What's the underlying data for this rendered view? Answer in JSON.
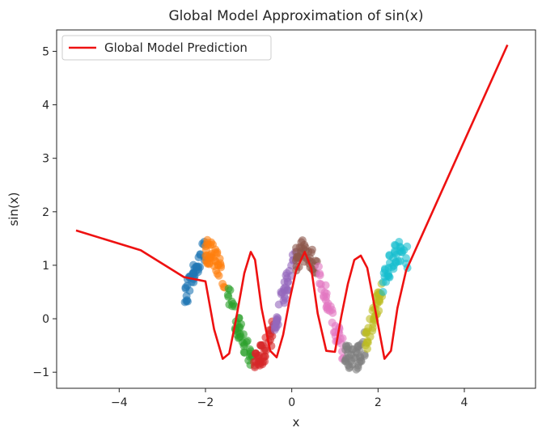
{
  "chart_data": {
    "type": "scatter",
    "title": "Global Model Approximation of sin(x)",
    "xlabel": "x",
    "ylabel": "sin(x)",
    "xlim": [
      -5.45,
      5.65
    ],
    "ylim": [
      -1.3,
      5.4
    ],
    "xticks": [
      -4,
      -2,
      0,
      2,
      4
    ],
    "yticks": [
      -1,
      0,
      1,
      2,
      3,
      4,
      5
    ],
    "tick_labels_x": [
      "−4",
      "−2",
      "0",
      "2",
      "4"
    ],
    "tick_labels_y": [
      "−1",
      "0",
      "1",
      "2",
      "3",
      "4",
      "5"
    ],
    "grid": false,
    "legend_position": "top-left",
    "legend_entries": [
      "Global Model Prediction"
    ],
    "scatter_clusters": [
      {
        "x_range": [
          -2.5,
          -2.0
        ],
        "color": "#1f77b4"
      },
      {
        "x_range": [
          -2.0,
          -1.5
        ],
        "color": "#ff7f0e"
      },
      {
        "x_range": [
          -1.5,
          -0.9
        ],
        "color": "#2ca02c"
      },
      {
        "x_range": [
          -0.9,
          -0.4
        ],
        "color": "#d62728"
      },
      {
        "x_range": [
          -0.4,
          0.1
        ],
        "color": "#9467bd"
      },
      {
        "x_range": [
          0.1,
          0.6
        ],
        "color": "#8c564b"
      },
      {
        "x_range": [
          0.6,
          1.2
        ],
        "color": "#e377c2"
      },
      {
        "x_range": [
          1.2,
          1.7
        ],
        "color": "#7f7f7f"
      },
      {
        "x_range": [
          1.7,
          2.1
        ],
        "color": "#bcbd22"
      },
      {
        "x_range": [
          2.1,
          2.7
        ],
        "color": "#17becf"
      }
    ],
    "series": [
      {
        "name": "Global Model Prediction",
        "color": "#ee1111",
        "x": [
          -5.0,
          -3.5,
          -2.5,
          -2.0,
          -1.8,
          -1.6,
          -1.45,
          -1.3,
          -1.1,
          -0.95,
          -0.85,
          -0.7,
          -0.5,
          -0.35,
          -0.2,
          -0.05,
          0.1,
          0.3,
          0.45,
          0.6,
          0.8,
          1.0,
          1.15,
          1.3,
          1.45,
          1.6,
          1.75,
          1.95,
          2.15,
          2.3,
          2.45,
          2.65,
          5.0
        ],
        "y": [
          1.65,
          1.28,
          0.78,
          0.7,
          -0.2,
          -0.75,
          -0.65,
          -0.05,
          0.85,
          1.25,
          1.1,
          0.2,
          -0.6,
          -0.72,
          -0.3,
          0.35,
          0.9,
          1.25,
          0.95,
          0.1,
          -0.6,
          -0.62,
          0.05,
          0.65,
          1.1,
          1.18,
          0.95,
          0.1,
          -0.75,
          -0.6,
          0.2,
          0.9,
          5.12
        ]
      }
    ]
  }
}
